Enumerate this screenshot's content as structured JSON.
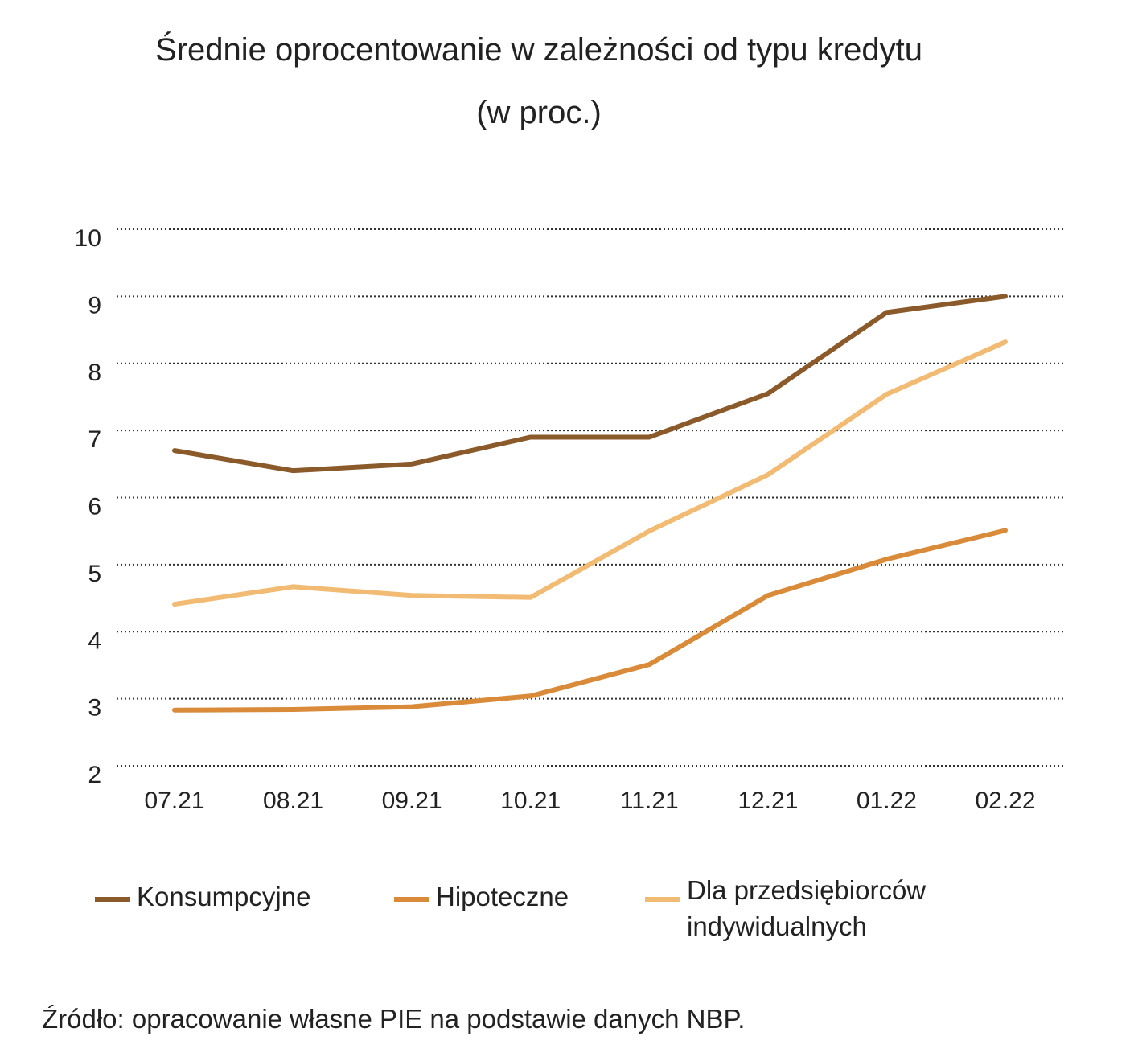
{
  "chart_data": {
    "type": "line",
    "title": "Średnie oprocentowanie w zależności od typu kredytu",
    "subtitle": "(w proc.)",
    "categories": [
      "07.21",
      "08.21",
      "09.21",
      "10.21",
      "11.21",
      "12.21",
      "01.22",
      "02.22"
    ],
    "ylim": [
      2,
      10
    ],
    "yticks": [
      10,
      9,
      8,
      7,
      6,
      5,
      4,
      3,
      2
    ],
    "grid": "horizontal dotted",
    "legend_position": "bottom",
    "series": [
      {
        "name": "Konsumpcyjne",
        "color": "#8B5A2B",
        "values": [
          6.7,
          6.4,
          6.5,
          6.9,
          6.9,
          7.55,
          8.76,
          9.0
        ]
      },
      {
        "name": "Hipoteczne",
        "color": "#D98B3A",
        "values": [
          2.83,
          2.84,
          2.88,
          3.04,
          3.51,
          4.54,
          5.08,
          5.51
        ]
      },
      {
        "name": "Dla przedsiębiorców indywidualnych",
        "name_lines": [
          "Dla przedsiębiorców",
          "indywidualnych"
        ],
        "color": "#F2BB74",
        "values": [
          4.41,
          4.67,
          4.54,
          4.51,
          5.5,
          6.34,
          7.54,
          8.32
        ]
      }
    ]
  },
  "source": "Źródło: opracowanie własne PIE na podstawie danych NBP."
}
